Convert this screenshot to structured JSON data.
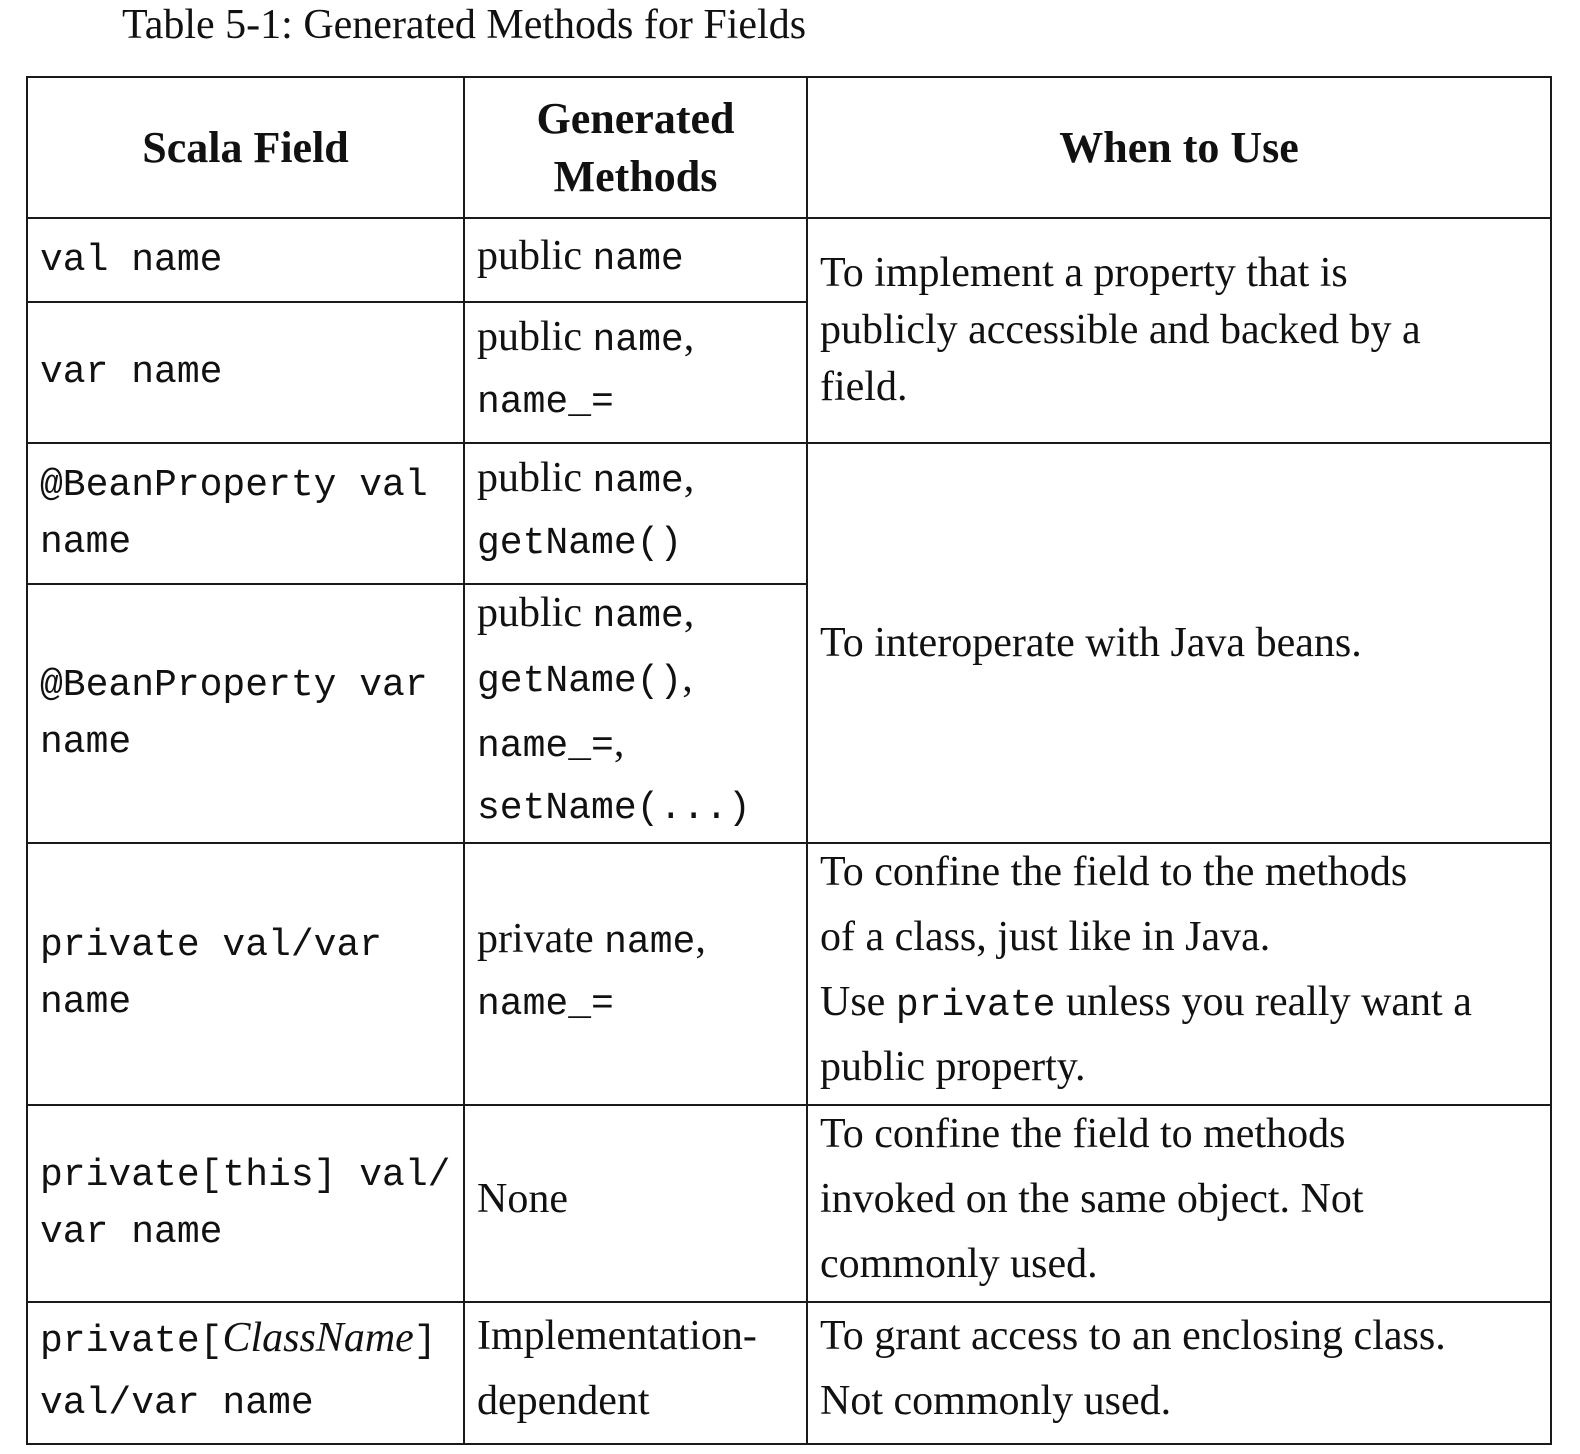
{
  "caption": "Table 5-1: Generated Methods for Fields",
  "headers": {
    "scala_field": "Scala Field",
    "generated_methods_line1": "Generated",
    "generated_methods_line2": "Methods",
    "when_to_use": "When to Use"
  },
  "rows": [
    {
      "field": [
        "val name"
      ],
      "methods": [
        [
          {
            "t": "public ",
            "f": "serif"
          },
          {
            "t": "name",
            "f": "mono"
          }
        ]
      ]
    },
    {
      "field": [
        "var name"
      ],
      "methods": [
        [
          {
            "t": "public ",
            "f": "serif"
          },
          {
            "t": "name",
            "f": "mono"
          },
          {
            "t": ",",
            "f": "serif"
          }
        ],
        [
          {
            "t": "name_=",
            "f": "mono"
          }
        ]
      ]
    },
    {
      "field": [
        "@BeanProperty val",
        "name"
      ],
      "methods": [
        [
          {
            "t": "public ",
            "f": "serif"
          },
          {
            "t": "name",
            "f": "mono"
          },
          {
            "t": ",",
            "f": "serif"
          }
        ],
        [
          {
            "t": "getName()",
            "f": "mono"
          }
        ]
      ]
    },
    {
      "field": [
        "@BeanProperty var",
        "name"
      ],
      "methods": [
        [
          {
            "t": "public ",
            "f": "serif"
          },
          {
            "t": "name",
            "f": "mono"
          },
          {
            "t": ",",
            "f": "serif"
          }
        ],
        [
          {
            "t": "getName()",
            "f": "mono"
          },
          {
            "t": ",",
            "f": "serif"
          }
        ],
        [
          {
            "t": "name_=",
            "f": "mono"
          },
          {
            "t": ",",
            "f": "serif"
          }
        ],
        [
          {
            "t": "setName(...)",
            "f": "mono"
          }
        ]
      ]
    },
    {
      "field": [
        "private val/var",
        "name"
      ],
      "methods": [
        [
          {
            "t": "private ",
            "f": "serif"
          },
          {
            "t": "name",
            "f": "mono"
          },
          {
            "t": ",",
            "f": "serif"
          }
        ],
        [
          {
            "t": "name_=",
            "f": "mono"
          }
        ]
      ],
      "when": [
        [
          {
            "t": "To confine the field to the methods",
            "f": "serif"
          }
        ],
        [
          {
            "t": "of a class, just like in Java.",
            "f": "serif"
          }
        ],
        [
          {
            "t": "Use ",
            "f": "serif"
          },
          {
            "t": "private",
            "f": "mono"
          },
          {
            "t": " unless you really want a",
            "f": "serif"
          }
        ],
        [
          {
            "t": "public property.",
            "f": "serif"
          }
        ]
      ]
    },
    {
      "field": [
        "private[this] val/",
        "var name"
      ],
      "methods": [
        [
          {
            "t": "None",
            "f": "serif"
          }
        ]
      ],
      "when": [
        [
          {
            "t": "To confine the field to methods",
            "f": "serif"
          }
        ],
        [
          {
            "t": "invoked on the same object.  Not",
            "f": "serif"
          }
        ],
        [
          {
            "t": "commonly used.",
            "f": "serif"
          }
        ]
      ]
    },
    {
      "field_rich": [
        [
          {
            "t": "private[",
            "f": "mono"
          },
          {
            "t": "ClassName",
            "f": "italic"
          },
          {
            "t": "]",
            "f": "mono"
          }
        ],
        [
          {
            "t": "val/var name",
            "f": "mono"
          }
        ]
      ],
      "methods": [
        [
          {
            "t": "Implementation-",
            "f": "serif"
          }
        ],
        [
          {
            "t": "dependent",
            "f": "serif"
          }
        ]
      ],
      "when": [
        [
          {
            "t": "To grant access to an enclosing class.",
            "f": "serif"
          }
        ],
        [
          {
            "t": "Not commonly used.",
            "f": "serif"
          }
        ]
      ]
    }
  ],
  "merged_when": {
    "property": [
      "To implement a property that is",
      "publicly accessible and backed by a",
      "field."
    ],
    "beans": [
      "To interoperate with Java beans."
    ]
  }
}
